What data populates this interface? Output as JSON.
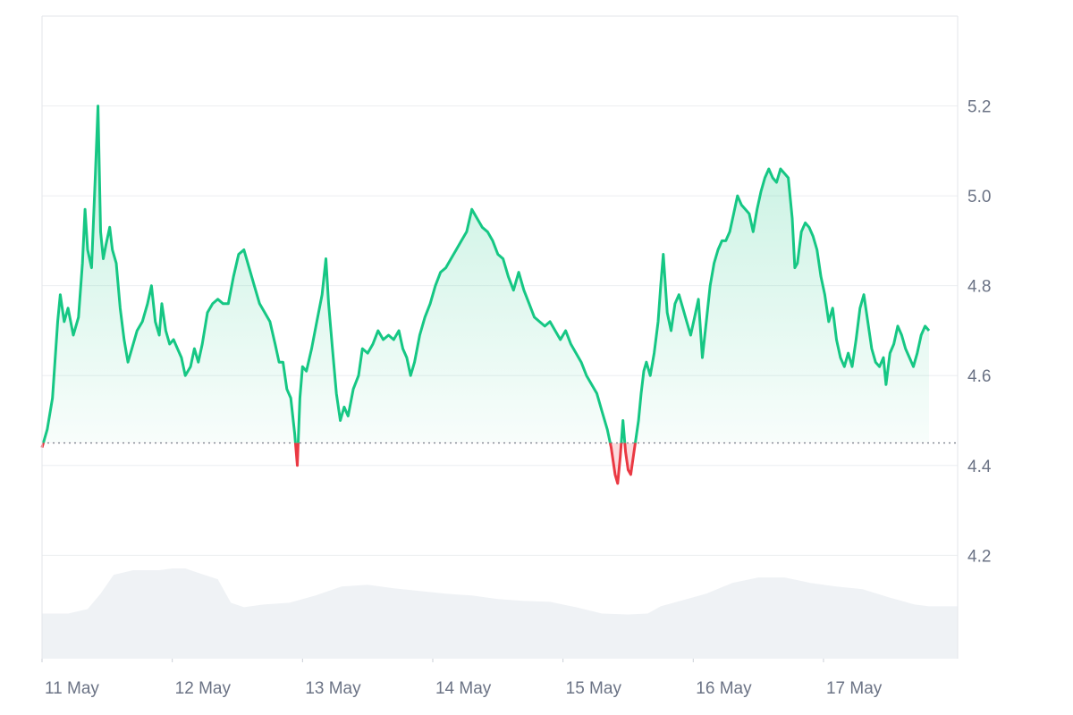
{
  "chart_data": {
    "type": "line",
    "baseline": 4.45,
    "ylim": [
      3.97,
      5.4
    ],
    "xlim": [
      0,
      7.03
    ],
    "y_ticks": [
      {
        "value": 5.2,
        "label": "5.2"
      },
      {
        "value": 5.0,
        "label": "5.0"
      },
      {
        "value": 4.8,
        "label": "4.8"
      },
      {
        "value": 4.6,
        "label": "4.6"
      },
      {
        "value": 4.4,
        "label": "4.4"
      },
      {
        "value": 4.2,
        "label": "4.2"
      }
    ],
    "x_ticks": [
      {
        "value": 0,
        "label": "11 May"
      },
      {
        "value": 1,
        "label": "12 May"
      },
      {
        "value": 2,
        "label": "13 May"
      },
      {
        "value": 3,
        "label": "14 May"
      },
      {
        "value": 4,
        "label": "15 May"
      },
      {
        "value": 5,
        "label": "16 May"
      },
      {
        "value": 6,
        "label": "17 May"
      }
    ],
    "colors": {
      "up": "#16c784",
      "down": "#ea3943",
      "up_fill": "#16c784",
      "down_fill": "#ea3943",
      "grid": "#eceef1",
      "baseline": "#8a8f99",
      "volume": "#eff2f5",
      "axis_text": "#6b7385"
    },
    "series": [
      {
        "values": [
          [
            0.0,
            4.44
          ],
          [
            0.04,
            4.48
          ],
          [
            0.08,
            4.55
          ],
          [
            0.12,
            4.72
          ],
          [
            0.14,
            4.78
          ],
          [
            0.17,
            4.72
          ],
          [
            0.2,
            4.75
          ],
          [
            0.24,
            4.69
          ],
          [
            0.28,
            4.73
          ],
          [
            0.31,
            4.85
          ],
          [
            0.33,
            4.97
          ],
          [
            0.35,
            4.88
          ],
          [
            0.38,
            4.84
          ],
          [
            0.41,
            5.05
          ],
          [
            0.43,
            5.2
          ],
          [
            0.45,
            4.92
          ],
          [
            0.47,
            4.86
          ],
          [
            0.49,
            4.89
          ],
          [
            0.52,
            4.93
          ],
          [
            0.54,
            4.88
          ],
          [
            0.57,
            4.85
          ],
          [
            0.6,
            4.75
          ],
          [
            0.63,
            4.68
          ],
          [
            0.66,
            4.63
          ],
          [
            0.69,
            4.66
          ],
          [
            0.73,
            4.7
          ],
          [
            0.77,
            4.72
          ],
          [
            0.81,
            4.76
          ],
          [
            0.84,
            4.8
          ],
          [
            0.87,
            4.72
          ],
          [
            0.9,
            4.69
          ],
          [
            0.92,
            4.76
          ],
          [
            0.95,
            4.7
          ],
          [
            0.98,
            4.67
          ],
          [
            1.01,
            4.68
          ],
          [
            1.04,
            4.66
          ],
          [
            1.07,
            4.64
          ],
          [
            1.1,
            4.6
          ],
          [
            1.14,
            4.62
          ],
          [
            1.17,
            4.66
          ],
          [
            1.2,
            4.63
          ],
          [
            1.23,
            4.67
          ],
          [
            1.27,
            4.74
          ],
          [
            1.31,
            4.76
          ],
          [
            1.35,
            4.77
          ],
          [
            1.39,
            4.76
          ],
          [
            1.43,
            4.76
          ],
          [
            1.47,
            4.82
          ],
          [
            1.51,
            4.87
          ],
          [
            1.55,
            4.88
          ],
          [
            1.59,
            4.84
          ],
          [
            1.63,
            4.8
          ],
          [
            1.67,
            4.76
          ],
          [
            1.71,
            4.74
          ],
          [
            1.75,
            4.72
          ],
          [
            1.79,
            4.67
          ],
          [
            1.82,
            4.63
          ],
          [
            1.85,
            4.63
          ],
          [
            1.88,
            4.57
          ],
          [
            1.91,
            4.55
          ],
          [
            1.94,
            4.47
          ],
          [
            1.96,
            4.4
          ],
          [
            1.98,
            4.55
          ],
          [
            2.0,
            4.62
          ],
          [
            2.03,
            4.61
          ],
          [
            2.07,
            4.66
          ],
          [
            2.11,
            4.72
          ],
          [
            2.15,
            4.78
          ],
          [
            2.18,
            4.86
          ],
          [
            2.2,
            4.76
          ],
          [
            2.23,
            4.66
          ],
          [
            2.26,
            4.56
          ],
          [
            2.29,
            4.5
          ],
          [
            2.32,
            4.53
          ],
          [
            2.35,
            4.51
          ],
          [
            2.39,
            4.57
          ],
          [
            2.43,
            4.6
          ],
          [
            2.46,
            4.66
          ],
          [
            2.5,
            4.65
          ],
          [
            2.54,
            4.67
          ],
          [
            2.58,
            4.7
          ],
          [
            2.62,
            4.68
          ],
          [
            2.66,
            4.69
          ],
          [
            2.7,
            4.68
          ],
          [
            2.74,
            4.7
          ],
          [
            2.77,
            4.66
          ],
          [
            2.8,
            4.64
          ],
          [
            2.83,
            4.6
          ],
          [
            2.86,
            4.63
          ],
          [
            2.9,
            4.69
          ],
          [
            2.94,
            4.73
          ],
          [
            2.98,
            4.76
          ],
          [
            3.02,
            4.8
          ],
          [
            3.06,
            4.83
          ],
          [
            3.1,
            4.84
          ],
          [
            3.14,
            4.86
          ],
          [
            3.18,
            4.88
          ],
          [
            3.22,
            4.9
          ],
          [
            3.26,
            4.92
          ],
          [
            3.3,
            4.97
          ],
          [
            3.34,
            4.95
          ],
          [
            3.38,
            4.93
          ],
          [
            3.42,
            4.92
          ],
          [
            3.46,
            4.9
          ],
          [
            3.5,
            4.87
          ],
          [
            3.54,
            4.86
          ],
          [
            3.58,
            4.82
          ],
          [
            3.62,
            4.79
          ],
          [
            3.66,
            4.83
          ],
          [
            3.7,
            4.79
          ],
          [
            3.74,
            4.76
          ],
          [
            3.78,
            4.73
          ],
          [
            3.82,
            4.72
          ],
          [
            3.86,
            4.71
          ],
          [
            3.9,
            4.72
          ],
          [
            3.94,
            4.7
          ],
          [
            3.98,
            4.68
          ],
          [
            4.02,
            4.7
          ],
          [
            4.06,
            4.67
          ],
          [
            4.1,
            4.65
          ],
          [
            4.14,
            4.63
          ],
          [
            4.18,
            4.6
          ],
          [
            4.22,
            4.58
          ],
          [
            4.26,
            4.56
          ],
          [
            4.3,
            4.52
          ],
          [
            4.34,
            4.48
          ],
          [
            4.37,
            4.44
          ],
          [
            4.4,
            4.38
          ],
          [
            4.42,
            4.36
          ],
          [
            4.44,
            4.42
          ],
          [
            4.46,
            4.5
          ],
          [
            4.48,
            4.43
          ],
          [
            4.5,
            4.39
          ],
          [
            4.52,
            4.38
          ],
          [
            4.54,
            4.42
          ],
          [
            4.56,
            4.46
          ],
          [
            4.58,
            4.5
          ],
          [
            4.6,
            4.56
          ],
          [
            4.62,
            4.61
          ],
          [
            4.64,
            4.63
          ],
          [
            4.67,
            4.6
          ],
          [
            4.7,
            4.65
          ],
          [
            4.73,
            4.72
          ],
          [
            4.75,
            4.8
          ],
          [
            4.77,
            4.87
          ],
          [
            4.8,
            4.74
          ],
          [
            4.83,
            4.7
          ],
          [
            4.86,
            4.76
          ],
          [
            4.89,
            4.78
          ],
          [
            4.92,
            4.75
          ],
          [
            4.95,
            4.72
          ],
          [
            4.98,
            4.69
          ],
          [
            5.01,
            4.73
          ],
          [
            5.04,
            4.77
          ],
          [
            5.07,
            4.64
          ],
          [
            5.1,
            4.72
          ],
          [
            5.13,
            4.8
          ],
          [
            5.16,
            4.85
          ],
          [
            5.19,
            4.88
          ],
          [
            5.22,
            4.9
          ],
          [
            5.25,
            4.9
          ],
          [
            5.28,
            4.92
          ],
          [
            5.31,
            4.96
          ],
          [
            5.34,
            5.0
          ],
          [
            5.37,
            4.98
          ],
          [
            5.4,
            4.97
          ],
          [
            5.43,
            4.96
          ],
          [
            5.46,
            4.92
          ],
          [
            5.49,
            4.97
          ],
          [
            5.52,
            5.01
          ],
          [
            5.55,
            5.04
          ],
          [
            5.58,
            5.06
          ],
          [
            5.61,
            5.04
          ],
          [
            5.64,
            5.03
          ],
          [
            5.67,
            5.06
          ],
          [
            5.7,
            5.05
          ],
          [
            5.73,
            5.04
          ],
          [
            5.76,
            4.95
          ],
          [
            5.78,
            4.84
          ],
          [
            5.8,
            4.85
          ],
          [
            5.83,
            4.92
          ],
          [
            5.86,
            4.94
          ],
          [
            5.89,
            4.93
          ],
          [
            5.92,
            4.91
          ],
          [
            5.95,
            4.88
          ],
          [
            5.98,
            4.82
          ],
          [
            6.01,
            4.78
          ],
          [
            6.04,
            4.72
          ],
          [
            6.07,
            4.75
          ],
          [
            6.1,
            4.68
          ],
          [
            6.13,
            4.64
          ],
          [
            6.16,
            4.62
          ],
          [
            6.19,
            4.65
          ],
          [
            6.22,
            4.62
          ],
          [
            6.25,
            4.68
          ],
          [
            6.28,
            4.75
          ],
          [
            6.31,
            4.78
          ],
          [
            6.34,
            4.72
          ],
          [
            6.37,
            4.66
          ],
          [
            6.4,
            4.63
          ],
          [
            6.43,
            4.62
          ],
          [
            6.46,
            4.64
          ],
          [
            6.48,
            4.58
          ],
          [
            6.51,
            4.65
          ],
          [
            6.54,
            4.67
          ],
          [
            6.57,
            4.71
          ],
          [
            6.6,
            4.69
          ],
          [
            6.63,
            4.66
          ],
          [
            6.66,
            4.64
          ],
          [
            6.69,
            4.62
          ],
          [
            6.72,
            4.65
          ],
          [
            6.75,
            4.69
          ],
          [
            6.78,
            4.71
          ],
          [
            6.81,
            4.7
          ]
        ]
      }
    ],
    "volume": [
      [
        0.0,
        0.5
      ],
      [
        0.2,
        0.5
      ],
      [
        0.35,
        0.55
      ],
      [
        0.45,
        0.72
      ],
      [
        0.55,
        0.93
      ],
      [
        0.7,
        0.98
      ],
      [
        0.9,
        0.98
      ],
      [
        1.0,
        1.0
      ],
      [
        1.1,
        1.0
      ],
      [
        1.2,
        0.95
      ],
      [
        1.35,
        0.88
      ],
      [
        1.45,
        0.62
      ],
      [
        1.55,
        0.57
      ],
      [
        1.7,
        0.6
      ],
      [
        1.9,
        0.62
      ],
      [
        2.1,
        0.7
      ],
      [
        2.3,
        0.8
      ],
      [
        2.5,
        0.82
      ],
      [
        2.7,
        0.78
      ],
      [
        2.9,
        0.75
      ],
      [
        3.1,
        0.72
      ],
      [
        3.3,
        0.7
      ],
      [
        3.5,
        0.66
      ],
      [
        3.7,
        0.64
      ],
      [
        3.9,
        0.63
      ],
      [
        4.1,
        0.57
      ],
      [
        4.3,
        0.5
      ],
      [
        4.5,
        0.49
      ],
      [
        4.65,
        0.5
      ],
      [
        4.75,
        0.58
      ],
      [
        4.9,
        0.64
      ],
      [
        5.1,
        0.72
      ],
      [
        5.3,
        0.84
      ],
      [
        5.5,
        0.9
      ],
      [
        5.7,
        0.9
      ],
      [
        5.9,
        0.84
      ],
      [
        6.1,
        0.8
      ],
      [
        6.3,
        0.77
      ],
      [
        6.5,
        0.68
      ],
      [
        6.7,
        0.6
      ],
      [
        6.81,
        0.58
      ]
    ]
  }
}
